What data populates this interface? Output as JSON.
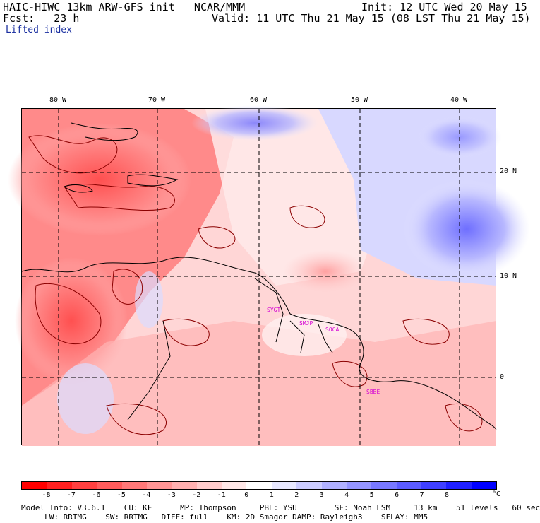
{
  "header": {
    "title_left": "HAIC-HIWC 13km ARW-GFS init   NCAR/MMM",
    "init": "Init: 12 UTC Wed 20 May 15",
    "fcst_left": "Fcst:   23 h",
    "valid": "Valid: 11 UTC Thu 21 May 15 (08 LST Thu 21 May 15)",
    "field": "Lifted index"
  },
  "axes": {
    "lon_labels": [
      "80 W",
      "70 W",
      "60 W",
      "50 W",
      "40 W"
    ],
    "lat_labels": [
      "20 N",
      "10 N",
      "0"
    ]
  },
  "stations": [
    "SYGT",
    "SMJP",
    "SOCA",
    "SBBE"
  ],
  "colorbar": {
    "ticks": [
      "-8",
      "-7",
      "-6",
      "-5",
      "-4",
      "-3",
      "-2",
      "-1",
      "0",
      "1",
      "2",
      "3",
      "4",
      "5",
      "6",
      "7",
      "8"
    ],
    "unit": "°C",
    "colors": [
      "#ff0000",
      "#ff2020",
      "#ff4040",
      "#ff5c5c",
      "#ff7878",
      "#ff9494",
      "#ffb0b0",
      "#ffcccc",
      "#ffe8e8",
      "#ffffff",
      "#e8e8ff",
      "#ccccff",
      "#b0b0ff",
      "#9494ff",
      "#7878ff",
      "#5c5cff",
      "#4040ff",
      "#2020ff",
      "#0000ff"
    ]
  },
  "model_info": {
    "line1": "Model Info: V3.6.1    CU: KF      MP: Thompson     PBL: YSU        SF: Noah LSM     13 km    51 levels   60 sec",
    "line2": "     LW: RRTMG    SW: RRTMG   DIFF: full    KM: 2D Smagor DAMP: Rayleigh3    SFLAY: MM5"
  },
  "colors": {
    "warm": "#ff6a6a",
    "neutral": "#ffe4e4",
    "cool": "#7a7aff",
    "station": "#d400d4"
  }
}
